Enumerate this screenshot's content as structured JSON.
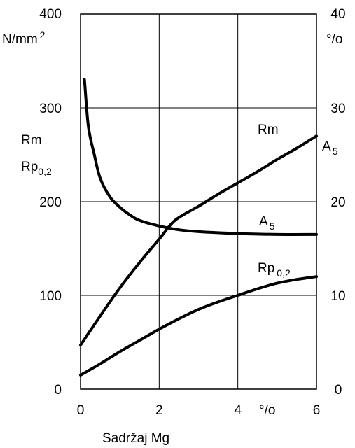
{
  "chart_data": {
    "type": "line",
    "title": "",
    "xlabel": "Sadržaj Mg",
    "x_unit": "°/o",
    "x_ticks": [
      "0",
      "2",
      "4",
      "6"
    ],
    "xlim": [
      0,
      6
    ],
    "y_left": {
      "unit": "N/mm",
      "unit_superscript": "2",
      "labels": [
        "Rm",
        "Rp",
        "0,2"
      ],
      "ticks": [
        "0",
        "100",
        "200",
        "300",
        "400"
      ],
      "ylim": [
        0,
        400
      ]
    },
    "y_right": {
      "unit": "°/o",
      "label": "A",
      "label_sub": "5",
      "ticks": [
        "0",
        "10",
        "20",
        "30",
        "40"
      ],
      "ylim": [
        0,
        40
      ]
    },
    "grid": true,
    "series": [
      {
        "name": "Rm",
        "axis": "left",
        "x": [
          0,
          0.5,
          1,
          1.5,
          2,
          2.4,
          3,
          3.5,
          4,
          4.5,
          5,
          5.5,
          6
        ],
        "y": [
          47,
          78,
          108,
          135,
          160,
          180,
          195,
          208,
          220,
          232,
          245,
          257,
          270
        ]
      },
      {
        "name": "A",
        "name_sub": "5",
        "axis": "right",
        "x": [
          0.1,
          0.2,
          0.35,
          0.5,
          0.75,
          1,
          1.25,
          1.5,
          2,
          2.5,
          3,
          4,
          5,
          6
        ],
        "y": [
          33,
          28,
          25,
          22.5,
          20.5,
          19.4,
          18.6,
          18,
          17.4,
          17,
          16.8,
          16.6,
          16.5,
          16.5
        ]
      },
      {
        "name": "Rp",
        "name_sub": "0,2",
        "axis": "left",
        "x": [
          0,
          0.5,
          1,
          1.5,
          2,
          2.5,
          3,
          3.5,
          4,
          4.5,
          5,
          5.5,
          6
        ],
        "y": [
          15,
          27,
          40,
          52,
          64,
          75,
          85,
          93,
          100,
          107,
          113,
          117,
          120
        ]
      }
    ]
  }
}
